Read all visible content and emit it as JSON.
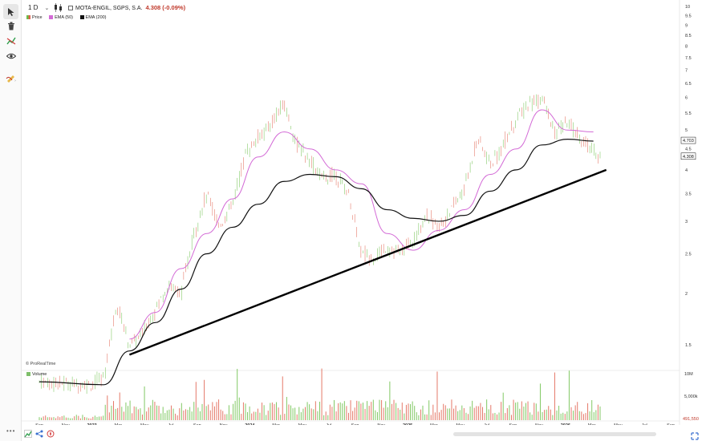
{
  "toolbar": {
    "timeframe": "1 D",
    "caret": "⌄"
  },
  "symbol": {
    "name": "MOTA-ENGIL, SGPS, S.A.",
    "price": "4.308 (-0.09%)"
  },
  "legend": {
    "price": "Price",
    "ema50": "EMA (50)",
    "ema200": "EMA (200)"
  },
  "volume_legend": "Volume",
  "watermark": "© ProRealTime",
  "more": "•••",
  "colors": {
    "up": "#6cbf4a",
    "down": "#e0614f",
    "ema50": "#d36ad6",
    "ema200": "#111111",
    "price_label": "#111111"
  },
  "chart_data": {
    "type": "line",
    "y_ticks": [
      "10",
      "9.5",
      "9",
      "8.5",
      "8",
      "7.5",
      "7",
      "6.5",
      "6",
      "5.5",
      "5",
      "4.5",
      "4",
      "3.5",
      "3",
      "2.5",
      "2",
      "1.5"
    ],
    "x_labels": [
      "Sep",
      "Nov",
      "2023",
      "Mar",
      "May",
      "Jul",
      "Sep",
      "Nov",
      "2024",
      "Mar",
      "May",
      "Jul",
      "Sep",
      "Nov",
      "2025",
      "Mar",
      "May",
      "Jul",
      "Sep",
      "Nov",
      "2026",
      "Mar",
      "May",
      "Jul",
      "Sep"
    ],
    "bold_x_labels": [
      "2023",
      "2024",
      "2025",
      "2026"
    ],
    "volume_ticks": [
      "10M",
      "5,000k"
    ],
    "last_ema200": "4.703",
    "last_price": "4.308",
    "last_volume": "491,550",
    "y_scale": "log",
    "ylim": [
      1.3,
      10
    ],
    "series": [
      {
        "name": "EMA (50)",
        "points": [
          [
            "2023-03",
            1.55
          ],
          [
            "2023-05",
            1.8
          ],
          [
            "2023-07",
            2.3
          ],
          [
            "2023-09",
            2.8
          ],
          [
            "2023-11",
            3.4
          ],
          [
            "2024-01",
            4.3
          ],
          [
            "2024-03",
            4.95
          ],
          [
            "2024-05",
            4.5
          ],
          [
            "2024-07",
            4.0
          ],
          [
            "2024-09",
            3.7
          ],
          [
            "2024-11",
            2.8
          ],
          [
            "2025-01",
            2.55
          ],
          [
            "2025-03",
            2.85
          ],
          [
            "2025-05",
            3.2
          ],
          [
            "2025-07",
            3.9
          ],
          [
            "2025-09",
            4.5
          ],
          [
            "2025-11",
            5.6
          ],
          [
            "2026-01",
            5.0
          ],
          [
            "2026-03",
            4.95
          ]
        ]
      },
      {
        "name": "EMA (200)",
        "points": [
          [
            "2022-08",
            1.22
          ],
          [
            "2023-01",
            1.2
          ],
          [
            "2023-03",
            1.45
          ],
          [
            "2023-05",
            1.7
          ],
          [
            "2023-07",
            2.05
          ],
          [
            "2023-09",
            2.5
          ],
          [
            "2023-11",
            2.9
          ],
          [
            "2024-01",
            3.3
          ],
          [
            "2024-03",
            3.75
          ],
          [
            "2024-05",
            3.9
          ],
          [
            "2024-07",
            3.85
          ],
          [
            "2024-09",
            3.6
          ],
          [
            "2024-11",
            3.2
          ],
          [
            "2025-01",
            3.05
          ],
          [
            "2025-03",
            3.0
          ],
          [
            "2025-05",
            3.1
          ],
          [
            "2025-07",
            3.55
          ],
          [
            "2025-09",
            4.0
          ],
          [
            "2025-11",
            4.6
          ],
          [
            "2026-01",
            4.75
          ],
          [
            "2026-03",
            4.7
          ]
        ]
      },
      {
        "name": "trendline",
        "points": [
          [
            "2023-03",
            1.42
          ],
          [
            "2026-04",
            4.0
          ]
        ]
      }
    ]
  }
}
